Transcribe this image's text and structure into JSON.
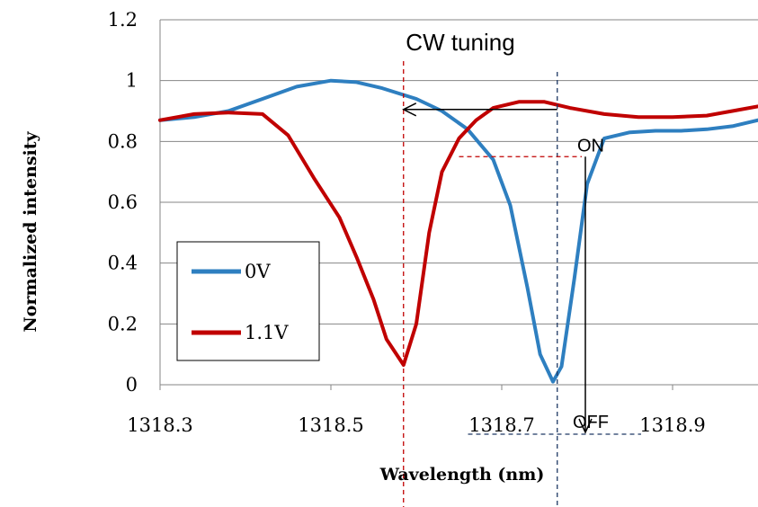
{
  "chart_data": {
    "type": "line",
    "title": "CW tuning",
    "xlabel": "Wavelength (nm)",
    "ylabel": "Normalized intensity",
    "xlim": [
      1318.3,
      1319.0
    ],
    "ylim": [
      0,
      1.2
    ],
    "x_ticks": [
      "1318.3",
      "1318.5",
      "1318.7",
      "1318.9"
    ],
    "x_tick_values": [
      1318.3,
      1318.5,
      1318.7,
      1318.9
    ],
    "y_ticks": [
      "0",
      "0.2",
      "0.4",
      "0.6",
      "0.8",
      "1",
      "1.2"
    ],
    "y_tick_values": [
      0,
      0.2,
      0.4,
      0.6,
      0.8,
      1.0,
      1.2
    ],
    "grid": "horizontal",
    "legend_position": "bottom-left",
    "series": [
      {
        "name": "0V",
        "color": "#2e7fc0",
        "x": [
          1318.3,
          1318.34,
          1318.38,
          1318.42,
          1318.46,
          1318.5,
          1318.53,
          1318.56,
          1318.6,
          1318.63,
          1318.66,
          1318.69,
          1318.71,
          1318.73,
          1318.745,
          1318.76,
          1318.77,
          1318.785,
          1318.8,
          1318.82,
          1318.85,
          1318.88,
          1318.91,
          1318.94,
          1318.97,
          1319.0
        ],
        "y": [
          0.87,
          0.88,
          0.9,
          0.94,
          0.98,
          1.0,
          0.995,
          0.975,
          0.94,
          0.9,
          0.84,
          0.74,
          0.59,
          0.32,
          0.1,
          0.01,
          0.06,
          0.35,
          0.66,
          0.81,
          0.83,
          0.835,
          0.835,
          0.84,
          0.85,
          0.87
        ]
      },
      {
        "name": "1.1V",
        "color": "#c00000",
        "x": [
          1318.3,
          1318.34,
          1318.38,
          1318.42,
          1318.45,
          1318.48,
          1318.51,
          1318.53,
          1318.55,
          1318.565,
          1318.585,
          1318.6,
          1318.615,
          1318.63,
          1318.65,
          1318.67,
          1318.69,
          1318.72,
          1318.75,
          1318.78,
          1318.82,
          1318.86,
          1318.9,
          1318.94,
          1318.97,
          1319.0
        ],
        "y": [
          0.87,
          0.89,
          0.895,
          0.89,
          0.82,
          0.68,
          0.55,
          0.42,
          0.28,
          0.15,
          0.065,
          0.2,
          0.5,
          0.7,
          0.81,
          0.87,
          0.91,
          0.93,
          0.93,
          0.91,
          0.89,
          0.88,
          0.88,
          0.885,
          0.9,
          0.915
        ]
      }
    ],
    "annotations": {
      "on_label": "ON",
      "off_label": "OFF",
      "red_marker_x": 1318.585,
      "blue_marker_x": 1318.765,
      "arrow_from_x": 1318.765,
      "arrow_to_x": 1318.585,
      "arrow_y": 0.905,
      "on_level_y": 0.75,
      "on_level_from_x": 1318.65,
      "switch_x": 1318.8
    }
  }
}
